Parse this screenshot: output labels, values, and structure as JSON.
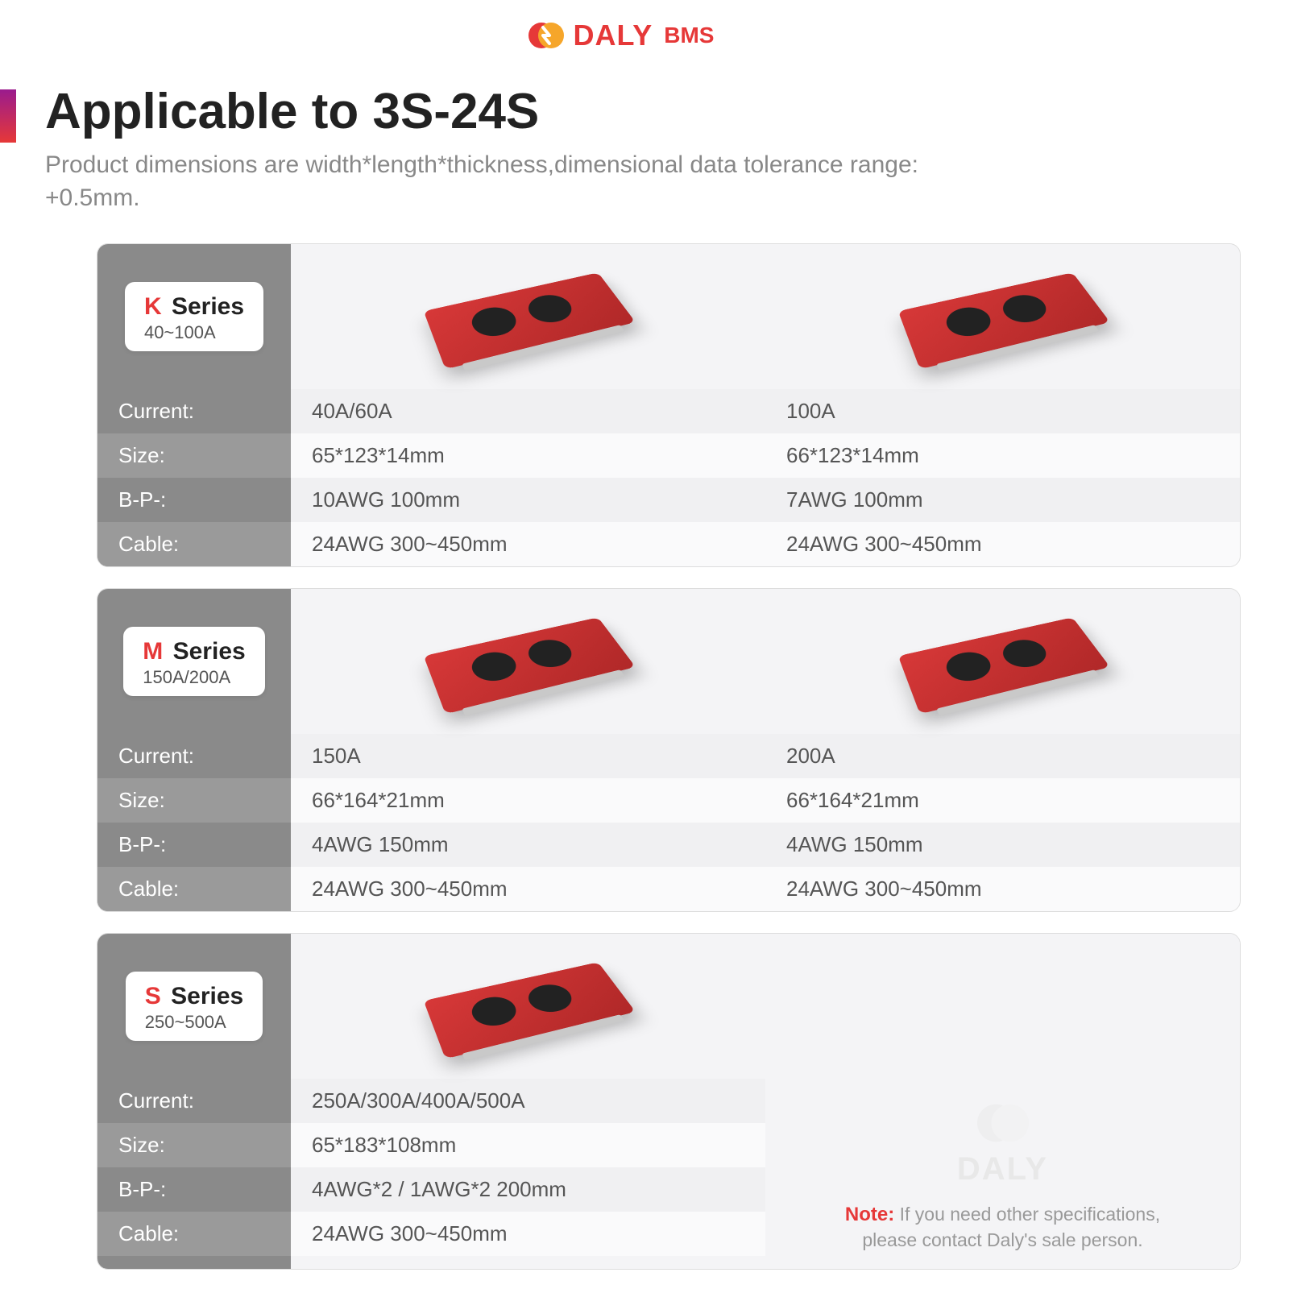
{
  "brand": {
    "name": "DALY",
    "sub": "BMS",
    "logo_colors": [
      "#e63838",
      "#f6a62a"
    ]
  },
  "title": "Applicable to 3S-24S",
  "subtitle": "Product dimensions are width*length*thickness,dimensional data tolerance range: +0.5mm.",
  "accent_gradient": [
    "#9a1b8e",
    "#e63838"
  ],
  "row_labels": [
    "Current:",
    "Size:",
    "B-P-:",
    "Cable:"
  ],
  "colors": {
    "label_bg": "#8a8a8a",
    "label_bg_alt": "#9a9a9a",
    "value_bg": "#f0f0f2",
    "value_bg_alt": "#fafafb",
    "card_bg": "#f4f4f6",
    "border": "#dddddd",
    "text": "#555555",
    "series_letter": "#e63838",
    "note_title": "#e63838",
    "board_color": "#d73838"
  },
  "series": [
    {
      "letter": "K",
      "word": "Series",
      "range": "40~100A",
      "variants": [
        {
          "Current": "40A/60A",
          "Size": "65*123*14mm",
          "BP": "10AWG   100mm",
          "Cable": "24AWG   300~450mm"
        },
        {
          "Current": "100A",
          "Size": "66*123*14mm",
          "BP": "7AWG   100mm",
          "Cable": "24AWG   300~450mm"
        }
      ]
    },
    {
      "letter": "M",
      "word": "Series",
      "range": "150A/200A",
      "variants": [
        {
          "Current": "150A",
          "Size": "66*164*21mm",
          "BP": "4AWG   150mm",
          "Cable": "24AWG   300~450mm"
        },
        {
          "Current": "200A",
          "Size": "66*164*21mm",
          "BP": "4AWG   150mm",
          "Cable": "24AWG   300~450mm"
        }
      ]
    },
    {
      "letter": "S",
      "word": "Series",
      "range": "250~500A",
      "variants": [
        {
          "Current": "250A/300A/400A/500A",
          "Size": "65*183*108mm",
          "BP": "4AWG*2 / 1AWG*2 200mm",
          "Cable": "24AWG   300~450mm"
        }
      ],
      "note": {
        "title": "Note:",
        "text": "If you need other specifications, please contact Daly's sale person.",
        "watermark": "DALY"
      }
    }
  ]
}
